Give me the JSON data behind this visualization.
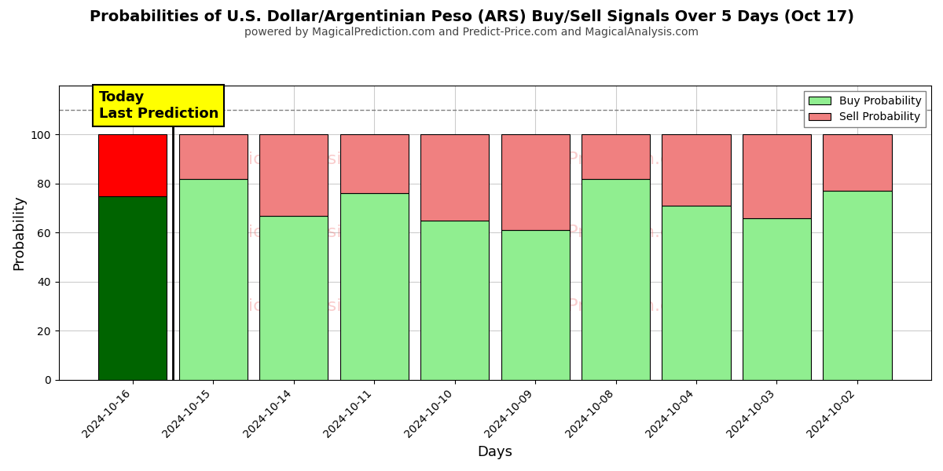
{
  "title": "Probabilities of U.S. Dollar/Argentinian Peso (ARS) Buy/Sell Signals Over 5 Days (Oct 17)",
  "subtitle": "powered by MagicalPrediction.com and Predict-Price.com and MagicalAnalysis.com",
  "xlabel": "Days",
  "ylabel": "Probability",
  "dates": [
    "2024-10-16",
    "2024-10-15",
    "2024-10-14",
    "2024-10-11",
    "2024-10-10",
    "2024-10-09",
    "2024-10-08",
    "2024-10-04",
    "2024-10-03",
    "2024-10-02"
  ],
  "buy_values": [
    75,
    82,
    67,
    76,
    65,
    61,
    82,
    71,
    66,
    77
  ],
  "sell_values": [
    25,
    18,
    33,
    24,
    35,
    39,
    18,
    29,
    34,
    23
  ],
  "today_buy_color": "#006400",
  "today_sell_color": "#FF0000",
  "buy_color": "#90EE90",
  "sell_color": "#F08080",
  "today_annotation_bg": "#FFFF00",
  "today_annotation_text": "Today\nLast Prediction",
  "legend_buy": "Buy Probability",
  "legend_sell": "Sell Probability",
  "ylim": [
    0,
    120
  ],
  "yticks": [
    0,
    20,
    40,
    60,
    80,
    100
  ],
  "dashed_line_y": 110,
  "bar_width": 0.85,
  "background_color": "#ffffff",
  "grid_color": "#cccccc"
}
